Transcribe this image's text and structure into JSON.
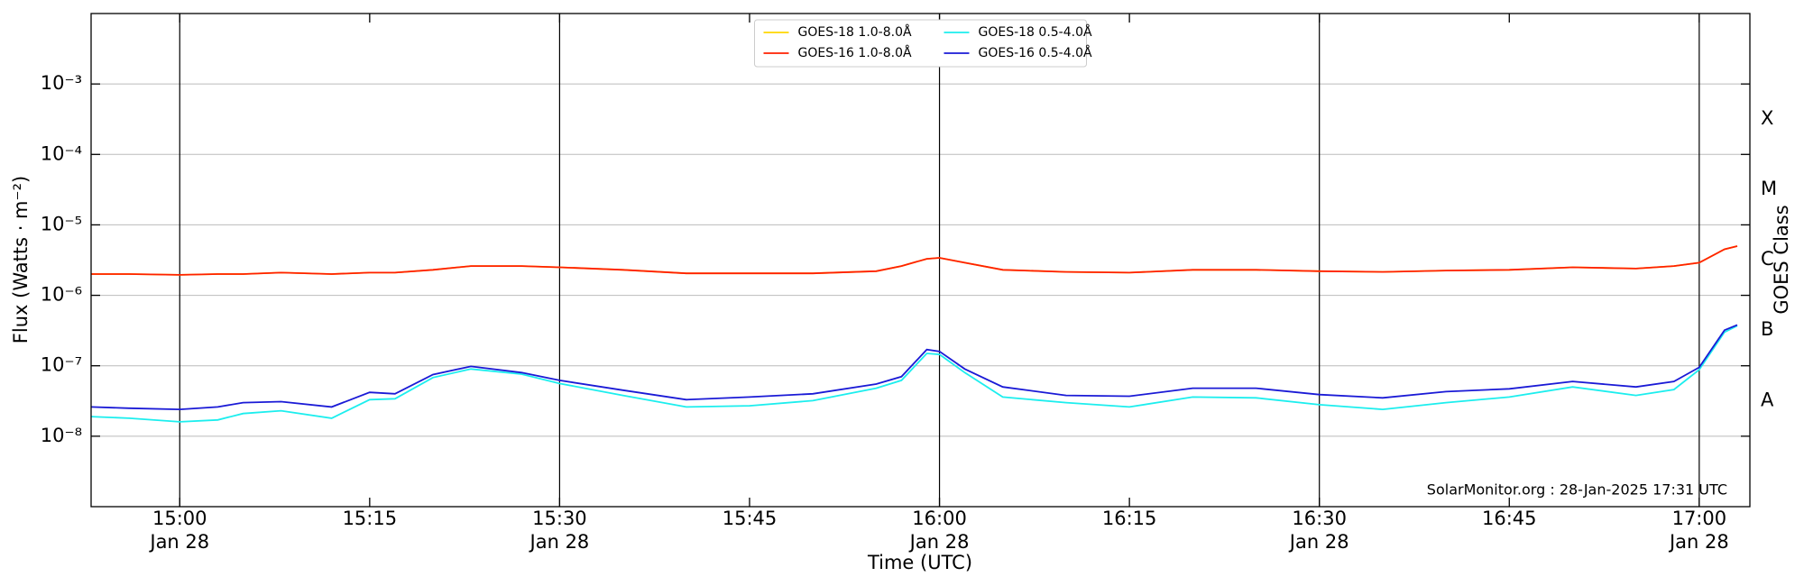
{
  "chart_data": {
    "type": "line",
    "annotation": "SolarMonitor.org : 28-Jan-2025 17:31 UTC",
    "x_label": "Time (UTC)",
    "y_label": "Flux (Watts · m⁻²)",
    "y2_label": "GOES Class",
    "ylog": true,
    "ygrid": true,
    "legend": "upper center",
    "x": [
      "14:53",
      "14:56",
      "15:00",
      "15:03",
      "15:05",
      "15:08",
      "15:12",
      "15:15",
      "15:17",
      "15:20",
      "15:23",
      "15:27",
      "15:30",
      "15:35",
      "15:40",
      "15:45",
      "15:50",
      "15:55",
      "15:57",
      "15:59",
      "16:00",
      "16:02",
      "16:05",
      "16:10",
      "16:15",
      "16:20",
      "16:25",
      "16:30",
      "16:35",
      "16:40",
      "16:45",
      "16:50",
      "16:55",
      "16:58",
      "17:00",
      "17:02",
      "17:03"
    ],
    "xlim": [
      "14:53",
      "17:04"
    ],
    "xticks": [
      {
        "value": "15:00",
        "label": "15:00",
        "date": "Jan 28"
      },
      {
        "value": "15:15",
        "label": "15:15"
      },
      {
        "value": "15:30",
        "label": "15:30",
        "date": "Jan 28"
      },
      {
        "value": "15:45",
        "label": "15:45"
      },
      {
        "value": "16:00",
        "label": "16:00",
        "date": "Jan 28"
      },
      {
        "value": "16:15",
        "label": "16:15"
      },
      {
        "value": "16:30",
        "label": "16:30",
        "date": "Jan 28"
      },
      {
        "value": "16:45",
        "label": "16:45"
      },
      {
        "value": "17:00",
        "label": "17:00",
        "date": "Jan 28"
      }
    ],
    "ylim": [
      1e-09,
      0.01
    ],
    "yticks": [
      {
        "value": 1e-08,
        "label": "10⁻⁸"
      },
      {
        "value": 1e-07,
        "label": "10⁻⁷"
      },
      {
        "value": 1e-06,
        "label": "10⁻⁶"
      },
      {
        "value": 1e-05,
        "label": "10⁻⁵"
      },
      {
        "value": 0.0001,
        "label": "10⁻⁴"
      },
      {
        "value": 0.001,
        "label": "10⁻³"
      }
    ],
    "y2ticks": [
      {
        "value": 3.2e-08,
        "label": "A"
      },
      {
        "value": 3.2e-07,
        "label": "B"
      },
      {
        "value": 3.2e-06,
        "label": "C"
      },
      {
        "value": 3.2e-05,
        "label": "M"
      },
      {
        "value": 0.00032,
        "label": "X"
      }
    ],
    "series": [
      {
        "name": "GOES-18 1.0-8.0Å",
        "color": "#ffd700",
        "values": [
          2e-06,
          2e-06,
          1.95e-06,
          2e-06,
          2e-06,
          2.1e-06,
          2e-06,
          2.1e-06,
          2.1e-06,
          2.3e-06,
          2.6e-06,
          2.6e-06,
          2.5e-06,
          2.3e-06,
          2.05e-06,
          2.05e-06,
          2.05e-06,
          2.2e-06,
          2.6e-06,
          3.3e-06,
          3.4e-06,
          2.9e-06,
          2.3e-06,
          2.15e-06,
          2.1e-06,
          2.3e-06,
          2.3e-06,
          2.2e-06,
          2.15e-06,
          2.25e-06,
          2.3e-06,
          2.5e-06,
          2.4e-06,
          2.6e-06,
          2.9e-06,
          4.5e-06,
          5e-06
        ]
      },
      {
        "name": "GOES-16 1.0-8.0Å",
        "color": "#ff2000",
        "values": [
          2e-06,
          2e-06,
          1.95e-06,
          2e-06,
          2e-06,
          2.1e-06,
          2e-06,
          2.1e-06,
          2.1e-06,
          2.3e-06,
          2.6e-06,
          2.6e-06,
          2.5e-06,
          2.3e-06,
          2.05e-06,
          2.05e-06,
          2.05e-06,
          2.2e-06,
          2.6e-06,
          3.3e-06,
          3.4e-06,
          2.9e-06,
          2.3e-06,
          2.15e-06,
          2.1e-06,
          2.3e-06,
          2.3e-06,
          2.2e-06,
          2.15e-06,
          2.25e-06,
          2.3e-06,
          2.5e-06,
          2.4e-06,
          2.6e-06,
          2.9e-06,
          4.5e-06,
          5e-06
        ]
      },
      {
        "name": "GOES-18 0.5-4.0Å",
        "color": "#1ceeee",
        "values": [
          1.9e-08,
          1.8e-08,
          1.6e-08,
          1.7e-08,
          2.1e-08,
          2.3e-08,
          1.8e-08,
          3.3e-08,
          3.4e-08,
          6.8e-08,
          9e-08,
          7.6e-08,
          5.6e-08,
          3.8e-08,
          2.6e-08,
          2.7e-08,
          3.2e-08,
          4.8e-08,
          6.2e-08,
          1.5e-07,
          1.45e-07,
          8e-08,
          3.6e-08,
          3e-08,
          2.6e-08,
          3.6e-08,
          3.5e-08,
          2.8e-08,
          2.4e-08,
          3e-08,
          3.6e-08,
          5e-08,
          3.8e-08,
          4.6e-08,
          8.8e-08,
          3e-07,
          3.7e-07
        ]
      },
      {
        "name": "GOES-16 0.5-4.0Å",
        "color": "#1a1ad6",
        "values": [
          2.6e-08,
          2.5e-08,
          2.4e-08,
          2.6e-08,
          3e-08,
          3.1e-08,
          2.6e-08,
          4.2e-08,
          4e-08,
          7.5e-08,
          9.8e-08,
          8e-08,
          6.2e-08,
          4.5e-08,
          3.3e-08,
          3.6e-08,
          4e-08,
          5.5e-08,
          7e-08,
          1.7e-07,
          1.6e-07,
          9e-08,
          5e-08,
          3.8e-08,
          3.7e-08,
          4.8e-08,
          4.8e-08,
          3.9e-08,
          3.5e-08,
          4.3e-08,
          4.7e-08,
          6e-08,
          5e-08,
          6e-08,
          9.5e-08,
          3.2e-07,
          3.8e-07
        ]
      }
    ]
  }
}
